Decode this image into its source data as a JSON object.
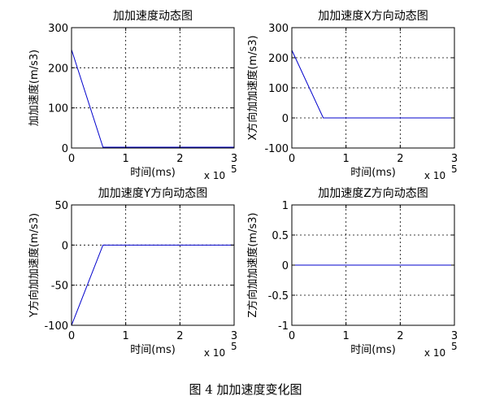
{
  "figure_caption": "图 4  加加速度变化图",
  "chart_data": [
    {
      "type": "line",
      "title": "加加速度动态图",
      "xlabel": "时间(ms)",
      "ylabel": "加加速度(m/s3)",
      "x_exponent_base": "x 10",
      "x_exponent_power": "5",
      "xlim": [
        0,
        3
      ],
      "ylim": [
        0,
        300
      ],
      "xticks": [
        "0",
        "1",
        "2",
        "3"
      ],
      "yticks": [
        "0",
        "100",
        "200",
        "300"
      ],
      "grid": true,
      "line_color": "#0000cc",
      "series": [
        {
          "x": [
            0,
            0.58,
            3
          ],
          "y": [
            245,
            2,
            2
          ]
        }
      ]
    },
    {
      "type": "line",
      "title": "加加速度X方向动态图",
      "xlabel": "时间(ms)",
      "ylabel": "X方向加加速度(m/s3)",
      "x_exponent_base": "x 10",
      "x_exponent_power": "5",
      "xlim": [
        0,
        3
      ],
      "ylim": [
        -100,
        300
      ],
      "xticks": [
        "0",
        "1",
        "2",
        "3"
      ],
      "yticks": [
        "-100",
        "0",
        "100",
        "200",
        "300"
      ],
      "grid": true,
      "line_color": "#0000cc",
      "series": [
        {
          "x": [
            0,
            0.58,
            3
          ],
          "y": [
            225,
            0,
            0
          ]
        }
      ]
    },
    {
      "type": "line",
      "title": "加加速度Y方向动态图",
      "xlabel": "时间(ms)",
      "ylabel": "Y方向加加速度(m/s3)",
      "x_exponent_base": "x 10",
      "x_exponent_power": "5",
      "xlim": [
        0,
        3
      ],
      "ylim": [
        -100,
        50
      ],
      "xticks": [
        "0",
        "1",
        "2",
        "3"
      ],
      "yticks": [
        "-100",
        "-50",
        "0",
        "50"
      ],
      "grid": true,
      "line_color": "#0000cc",
      "series": [
        {
          "x": [
            0,
            0.58,
            3
          ],
          "y": [
            -100,
            0,
            0
          ]
        }
      ]
    },
    {
      "type": "line",
      "title": "加加速度Z方向动态图",
      "xlabel": "时间(ms)",
      "ylabel": "Z方向加加速度(m/s3)",
      "x_exponent_base": "x 10",
      "x_exponent_power": "5",
      "xlim": [
        0,
        3
      ],
      "ylim": [
        -1,
        1
      ],
      "xticks": [
        "0",
        "1",
        "2",
        "3"
      ],
      "yticks": [
        "-1",
        "-0.5",
        "0",
        "0.5",
        "1"
      ],
      "grid": true,
      "line_color": "#0000cc",
      "series": [
        {
          "x": [
            0,
            3
          ],
          "y": [
            0,
            0
          ]
        }
      ]
    }
  ]
}
